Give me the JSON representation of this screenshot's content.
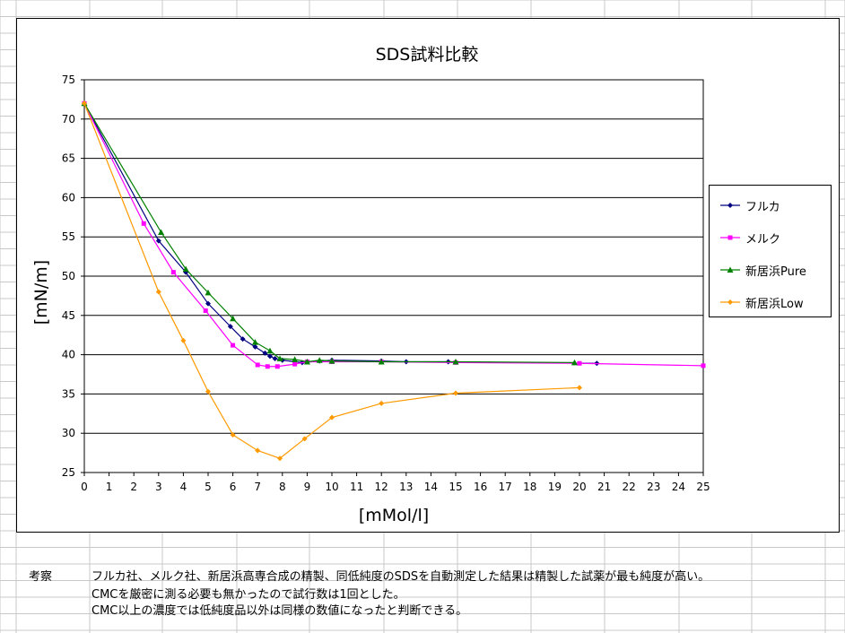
{
  "chart_data": {
    "type": "line",
    "title": "SDS試料比較",
    "xlabel": "[mMol/l]",
    "ylabel": "[mN/m]",
    "xlim": [
      0,
      25
    ],
    "ylim": [
      25,
      75
    ],
    "x_ticks": [
      0,
      1,
      2,
      3,
      4,
      5,
      6,
      7,
      8,
      9,
      10,
      11,
      12,
      13,
      14,
      15,
      16,
      17,
      18,
      19,
      20,
      21,
      22,
      23,
      24,
      25
    ],
    "y_ticks": [
      25,
      30,
      35,
      40,
      45,
      50,
      55,
      60,
      65,
      70,
      75
    ],
    "grid": "horizontal",
    "legend_position": "right",
    "series": [
      {
        "name": "フルカ",
        "color": "#000080",
        "marker": "diamond",
        "points": [
          [
            0,
            72.0
          ],
          [
            3.0,
            54.5
          ],
          [
            4.1,
            50.5
          ],
          [
            5.0,
            46.5
          ],
          [
            5.9,
            43.6
          ],
          [
            6.4,
            42.0
          ],
          [
            6.9,
            41.0
          ],
          [
            7.3,
            40.2
          ],
          [
            7.5,
            39.8
          ],
          [
            7.7,
            39.5
          ],
          [
            8.0,
            39.3
          ],
          [
            8.8,
            39.0
          ],
          [
            9.5,
            39.2
          ],
          [
            10.0,
            39.3
          ],
          [
            12.0,
            39.2
          ],
          [
            13.0,
            39.1
          ],
          [
            14.7,
            39.1
          ],
          [
            20.7,
            38.9
          ]
        ]
      },
      {
        "name": "メルク",
        "color": "#ff00ff",
        "marker": "square",
        "points": [
          [
            0,
            72.0
          ],
          [
            2.4,
            56.7
          ],
          [
            3.6,
            50.5
          ],
          [
            4.9,
            45.6
          ],
          [
            6.0,
            41.2
          ],
          [
            7.0,
            38.7
          ],
          [
            7.4,
            38.5
          ],
          [
            7.8,
            38.5
          ],
          [
            8.5,
            38.8
          ],
          [
            9.0,
            39.1
          ],
          [
            10.0,
            39.1
          ],
          [
            12.0,
            39.1
          ],
          [
            15.0,
            39.0
          ],
          [
            20.0,
            38.9
          ],
          [
            25.0,
            38.6
          ]
        ]
      },
      {
        "name": "新居浜Pure",
        "color": "#008000",
        "marker": "triangle",
        "points": [
          [
            0,
            72.0
          ],
          [
            3.1,
            55.6
          ],
          [
            4.1,
            50.9
          ],
          [
            5.0,
            47.9
          ],
          [
            6.0,
            44.6
          ],
          [
            6.9,
            41.6
          ],
          [
            7.5,
            40.5
          ],
          [
            7.9,
            39.5
          ],
          [
            8.5,
            39.4
          ],
          [
            9.0,
            39.1
          ],
          [
            9.5,
            39.3
          ],
          [
            10.0,
            39.2
          ],
          [
            12.0,
            39.1
          ],
          [
            15.0,
            39.1
          ],
          [
            19.8,
            39.0
          ]
        ]
      },
      {
        "name": "新居浜Low",
        "color": "#ff9900",
        "marker": "diamond",
        "points": [
          [
            0,
            72.0
          ],
          [
            3.0,
            48.0
          ],
          [
            4.0,
            41.8
          ],
          [
            5.0,
            35.3
          ],
          [
            6.0,
            29.8
          ],
          [
            7.0,
            27.8
          ],
          [
            7.9,
            26.8
          ],
          [
            8.9,
            29.3
          ],
          [
            10.0,
            32.0
          ],
          [
            12.0,
            33.8
          ],
          [
            15.0,
            35.1
          ],
          [
            20.0,
            35.8
          ]
        ]
      }
    ]
  },
  "annotation": {
    "label": "考察",
    "lines": [
      "フルカ社、メルク社、新居浜高専合成の精製、同低純度のSDSを自動測定した結果は精製した試薬が最も純度が高い。",
      "CMCを厳密に測る必要も無かったので試行数は1回とした。",
      "CMC以上の濃度では低純度品以外は同様の数値になったと判断できる。"
    ]
  }
}
